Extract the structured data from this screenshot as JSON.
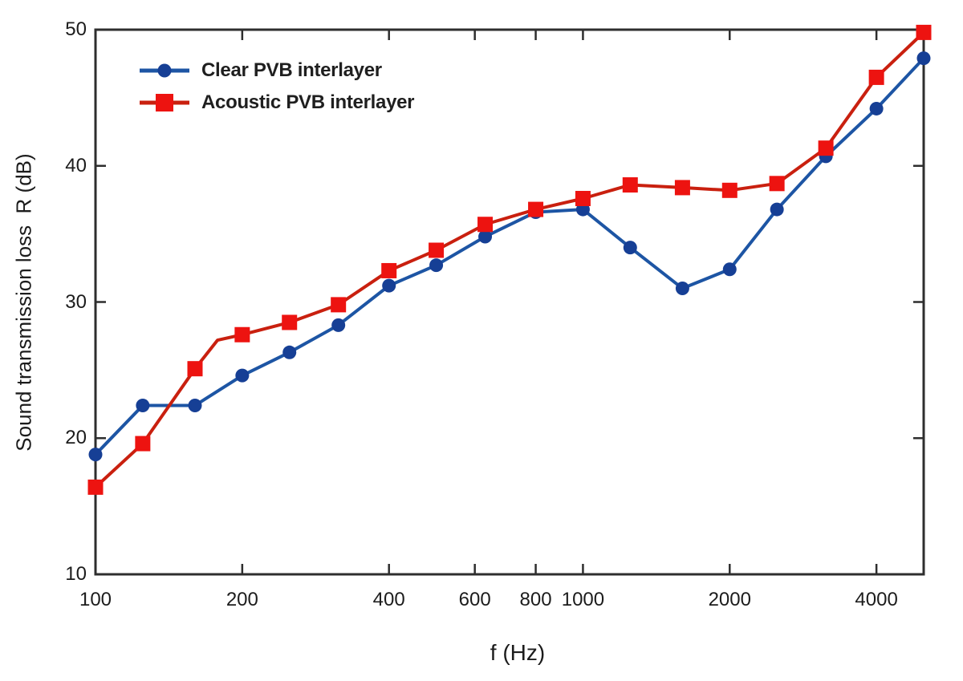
{
  "chart_data": {
    "type": "line",
    "title": "",
    "xlabel": "f (Hz)",
    "ylabel": "Sound transmission loss  R (dB)",
    "x_scale": "log",
    "y_scale": "linear",
    "xlim": [
      100,
      5000
    ],
    "ylim": [
      10,
      50
    ],
    "x_ticks": [
      100,
      200,
      400,
      600,
      800,
      1000,
      2000,
      4000
    ],
    "y_ticks": [
      10,
      20,
      30,
      40,
      50
    ],
    "grid": false,
    "legend_position": "upper-left-inside",
    "axis_color": "#2e2e2e",
    "series": [
      {
        "name": "Clear PVB interlayer",
        "marker": "circle",
        "line_color": "#1d55a4",
        "marker_color": "#163f95",
        "x": [
          100,
          125,
          160,
          200,
          250,
          315,
          400,
          500,
          630,
          800,
          1000,
          1250,
          1600,
          2000,
          2500,
          3150,
          4000,
          5000
        ],
        "y": [
          18.8,
          22.4,
          22.4,
          24.6,
          26.3,
          28.3,
          31.2,
          32.7,
          34.8,
          36.6,
          36.8,
          34.0,
          31.0,
          32.4,
          36.8,
          40.7,
          44.2,
          47.9
        ]
      },
      {
        "name": "Acoustic PVB interlayer",
        "marker": "square",
        "line_color": "#c9200f",
        "marker_color": "#ed1310",
        "x": [
          100,
          125,
          160,
          178,
          200,
          250,
          315,
          400,
          500,
          630,
          800,
          1000,
          1250,
          1600,
          2000,
          2500,
          3150,
          4000,
          5000
        ],
        "y": [
          16.4,
          19.6,
          25.1,
          27.2,
          27.6,
          28.5,
          29.8,
          32.3,
          33.8,
          35.7,
          36.8,
          37.6,
          38.6,
          38.4,
          38.2,
          38.7,
          41.3,
          46.5,
          49.8
        ],
        "hidden_marker_indices": [
          3
        ]
      }
    ]
  }
}
